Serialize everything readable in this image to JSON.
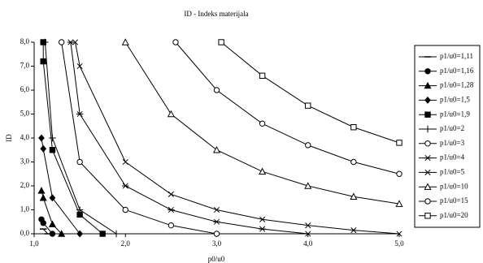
{
  "chart_data": {
    "type": "line",
    "title": "ID - Indeks materijala",
    "xlabel": "p0/u0",
    "ylabel": "ID",
    "xlim": [
      1,
      5
    ],
    "ylim": [
      0,
      8
    ],
    "xticks": [
      {
        "value": 1,
        "label": "1,0"
      },
      {
        "value": 2,
        "label": "2,0"
      },
      {
        "value": 3,
        "label": "3,0"
      },
      {
        "value": 4,
        "label": "4,0"
      },
      {
        "value": 5,
        "label": "5,0"
      }
    ],
    "yticks": [
      {
        "value": 0,
        "label": "0,0"
      },
      {
        "value": 1,
        "label": "1,0"
      },
      {
        "value": 2,
        "label": "2,0"
      },
      {
        "value": 3,
        "label": "3,0"
      },
      {
        "value": 4,
        "label": "4,0"
      },
      {
        "value": 5,
        "label": "5,0"
      },
      {
        "value": 6,
        "label": "6,0"
      },
      {
        "value": 7,
        "label": "7,0"
      },
      {
        "value": 8,
        "label": "8,0"
      }
    ],
    "legend": "right",
    "series": [
      {
        "name": "p1/u0=1,11",
        "color": "#000000",
        "marker": "dash",
        "x": [
          1.1,
          1.15
        ],
        "values": [
          0.2,
          0.0
        ]
      },
      {
        "name": "p1/u0=1,16",
        "color": "#000000",
        "marker": "circle-filled",
        "x": [
          1.08,
          1.1,
          1.2
        ],
        "values": [
          0.6,
          0.45,
          0.0
        ]
      },
      {
        "name": "p1/u0=1,28",
        "color": "#000000",
        "marker": "triangle-filled",
        "x": [
          1.08,
          1.1,
          1.2,
          1.3
        ],
        "values": [
          1.8,
          1.5,
          0.4,
          0.0
        ]
      },
      {
        "name": "p1/u0=1,5",
        "color": "#000000",
        "marker": "diamond-filled",
        "x": [
          1.08,
          1.1,
          1.2,
          1.5
        ],
        "values": [
          4.0,
          3.55,
          1.5,
          0.0
        ]
      },
      {
        "name": "p1/u0=1,9",
        "color": "#000000",
        "marker": "square-filled",
        "x": [
          1.1,
          1.1,
          1.2,
          1.5,
          1.75
        ],
        "values": [
          8.0,
          7.2,
          3.5,
          0.8,
          0.0
        ]
      },
      {
        "name": "p1/u0=2",
        "color": "#000000",
        "marker": "plus",
        "x": [
          1.12,
          1.2,
          1.5,
          1.9
        ],
        "values": [
          8.0,
          4.0,
          1.0,
          0.0
        ]
      },
      {
        "name": "p1/u0=3",
        "color": "#000000",
        "marker": "circle",
        "x": [
          1.3,
          1.5,
          2.0,
          2.5,
          3.0
        ],
        "values": [
          8.0,
          3.0,
          1.0,
          0.35,
          0.0
        ]
      },
      {
        "name": "p1/u0=4",
        "color": "#000000",
        "marker": "star",
        "x": [
          1.4,
          1.5,
          2.0,
          2.5,
          3.0,
          3.5,
          4.0
        ],
        "values": [
          8.0,
          5.0,
          2.0,
          1.0,
          0.5,
          0.2,
          0.0
        ]
      },
      {
        "name": "p1/u0=5",
        "color": "#000000",
        "marker": "x",
        "x": [
          1.45,
          1.5,
          2.0,
          2.5,
          3.0,
          3.5,
          4.0,
          4.5,
          5.0
        ],
        "values": [
          8.0,
          7.0,
          3.0,
          1.65,
          1.0,
          0.6,
          0.35,
          0.15,
          0.0
        ]
      },
      {
        "name": "p1/u0=10",
        "color": "#000000",
        "marker": "triangle",
        "x": [
          2.0,
          2.5,
          3.0,
          3.5,
          4.0,
          4.5,
          5.0
        ],
        "values": [
          8.0,
          5.0,
          3.5,
          2.6,
          2.0,
          1.55,
          1.25
        ]
      },
      {
        "name": "p1/u0=15",
        "color": "#000000",
        "marker": "circle",
        "x": [
          2.55,
          3.0,
          3.5,
          4.0,
          4.5,
          5.0
        ],
        "values": [
          8.0,
          6.0,
          4.6,
          3.7,
          3.0,
          2.5
        ]
      },
      {
        "name": "p1/u0=20",
        "color": "#000000",
        "marker": "square",
        "x": [
          3.05,
          3.5,
          4.0,
          4.5,
          5.0
        ],
        "values": [
          8.0,
          6.6,
          5.35,
          4.45,
          3.8
        ]
      }
    ]
  }
}
